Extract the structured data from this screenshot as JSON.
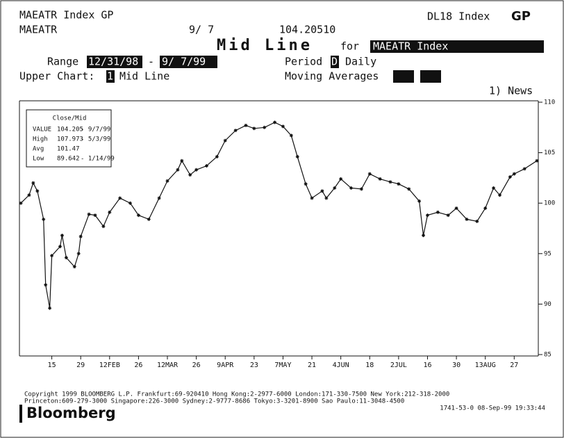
{
  "header": {
    "left_title": "MAEATR Index GP",
    "right_code": "DL18 Index",
    "right_key": "GP",
    "ticker": "MAEATR",
    "date": "9/ 7",
    "price": "104.20510",
    "screen_title": "Mid Line",
    "for": "for",
    "security": "MAEATR Index",
    "range_label": "Range",
    "range_start": "12/31/98",
    "range_dash": "-",
    "range_end": "9/ 7/99",
    "period_label": "Period",
    "period_code": "D",
    "period_name": "Daily",
    "upper_chart_label": "Upper Chart:",
    "upper_chart_code": "1",
    "upper_chart_name": "Mid Line",
    "moving_averages": "Moving Averages",
    "news": "1) News"
  },
  "legend": {
    "title": "Close/Mid",
    "rows": [
      [
        "VALUE",
        "104.205",
        "- 9/7/99"
      ],
      [
        "High",
        "107.973",
        "- 5/3/99"
      ],
      [
        "Avg",
        "101.47",
        ""
      ],
      [
        "Low",
        "89.642",
        "- 1/14/99"
      ]
    ]
  },
  "chart_data": {
    "type": "line",
    "color": "#111111",
    "x": [
      "12/31",
      "01/04",
      "01/06",
      "01/08",
      "01/11",
      "01/12",
      "01/14",
      "01/15",
      "01/19",
      "01/20",
      "01/22",
      "01/26",
      "01/28",
      "01/29",
      "02/02",
      "02/05",
      "02/09",
      "02/12",
      "02/17",
      "02/22",
      "02/26",
      "03/03",
      "03/08",
      "03/12",
      "03/17",
      "03/19",
      "03/23",
      "03/26",
      "03/31",
      "04/05",
      "04/09",
      "04/14",
      "04/19",
      "04/23",
      "04/28",
      "05/03",
      "05/07",
      "05/11",
      "05/14",
      "05/18",
      "05/21",
      "05/26",
      "05/28",
      "06/01",
      "06/04",
      "06/09",
      "06/14",
      "06/18",
      "06/23",
      "06/28",
      "07/02",
      "07/07",
      "07/12",
      "07/14",
      "07/16",
      "07/21",
      "07/26",
      "07/30",
      "08/04",
      "08/09",
      "08/13",
      "08/17",
      "08/20",
      "08/25",
      "08/27",
      "09/01",
      "09/07"
    ],
    "values": [
      100.0,
      100.8,
      102.0,
      101.2,
      98.4,
      91.9,
      89.6,
      94.8,
      95.7,
      96.8,
      94.6,
      93.7,
      95.0,
      96.7,
      98.9,
      98.8,
      97.7,
      99.1,
      100.5,
      100.0,
      98.8,
      98.4,
      100.5,
      102.2,
      103.3,
      104.2,
      102.8,
      103.3,
      103.7,
      104.6,
      106.2,
      107.2,
      107.7,
      107.4,
      107.5,
      108.0,
      107.6,
      106.7,
      104.6,
      101.9,
      100.5,
      101.2,
      100.5,
      101.5,
      102.4,
      101.5,
      101.4,
      102.9,
      102.4,
      102.1,
      101.9,
      101.4,
      100.2,
      96.8,
      98.8,
      99.1,
      98.8,
      99.5,
      98.4,
      98.2,
      99.5,
      101.5,
      100.8,
      102.6,
      102.9,
      103.4,
      104.2
    ],
    "xlim": [
      "12/31",
      "09/07"
    ],
    "xticks": [
      {
        "value": "01/15",
        "label": "15"
      },
      {
        "value": "01/29",
        "label": "29"
      },
      {
        "value": "02/12",
        "label": "12FEB"
      },
      {
        "value": "02/26",
        "label": "26"
      },
      {
        "value": "03/12",
        "label": "12MAR"
      },
      {
        "value": "03/26",
        "label": "26"
      },
      {
        "value": "04/09",
        "label": "9APR"
      },
      {
        "value": "04/23",
        "label": "23"
      },
      {
        "value": "05/07",
        "label": "7MAY"
      },
      {
        "value": "05/21",
        "label": "21"
      },
      {
        "value": "06/04",
        "label": "4JUN"
      },
      {
        "value": "06/18",
        "label": "18"
      },
      {
        "value": "07/02",
        "label": "2JUL"
      },
      {
        "value": "07/16",
        "label": "16"
      },
      {
        "value": "07/30",
        "label": "30"
      },
      {
        "value": "08/13",
        "label": "13AUG"
      },
      {
        "value": "08/27",
        "label": "27"
      }
    ],
    "ylim": [
      85,
      110
    ],
    "yticks": [
      85,
      90,
      95,
      100,
      105,
      110
    ]
  },
  "footer": {
    "line1": "Copyright 1999 BLOOMBERG L.P.  Frankfurt:69-920410  Hong Kong:2-2977-6000  London:171-330-7500  New York:212-318-2000",
    "line2": "Princeton:609-279-3000     Singapore:226-3000     Sydney:2-9777-8686     Tokyo:3-3201-8900     Sao Paulo:11-3048-4500",
    "line3": "1741-53-0 08-Sep-99 19:33:44",
    "logo": "Bloomberg"
  }
}
